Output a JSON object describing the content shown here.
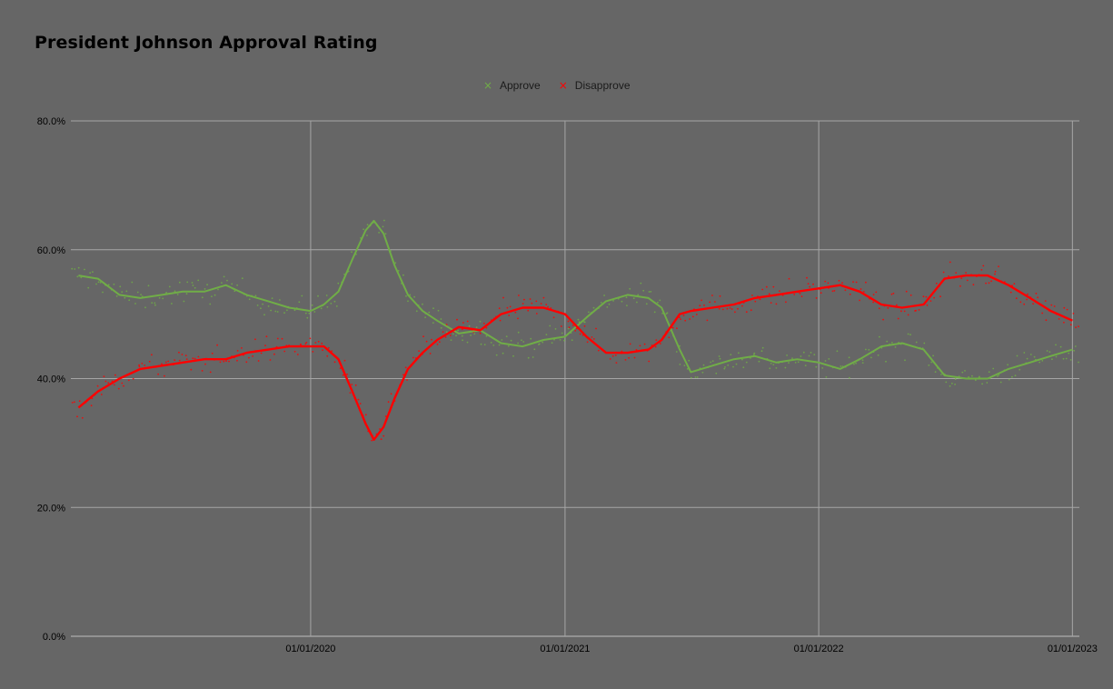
{
  "chart_data": {
    "type": "line",
    "title": "President Johnson Approval Rating",
    "xlabel": "",
    "ylabel": "",
    "x_ticks": [
      "01/01/2020",
      "01/01/2021",
      "01/01/2022",
      "01/01/2023"
    ],
    "y_ticks": [
      "0.0%",
      "20.0%",
      "40.0%",
      "60.0%",
      "80.0%"
    ],
    "ylim": [
      0,
      80
    ],
    "xlim": [
      "2019-01-21",
      "2023-01-11"
    ],
    "grid": true,
    "legend_position": "top-center",
    "markers": "scatter points of individual polls with a smoothed trend line per series",
    "series": [
      {
        "name": "Approve",
        "color": "#70ad47",
        "trend": [
          [
            "2019-02-01",
            56.0
          ],
          [
            "2019-03-01",
            55.5
          ],
          [
            "2019-04-01",
            53.0
          ],
          [
            "2019-05-01",
            52.5
          ],
          [
            "2019-06-01",
            53.0
          ],
          [
            "2019-07-01",
            53.5
          ],
          [
            "2019-08-01",
            53.5
          ],
          [
            "2019-09-01",
            54.5
          ],
          [
            "2019-10-01",
            53.0
          ],
          [
            "2019-11-01",
            52.0
          ],
          [
            "2019-12-01",
            51.0
          ],
          [
            "2020-01-01",
            50.5
          ],
          [
            "2020-01-20",
            51.5
          ],
          [
            "2020-02-10",
            53.5
          ],
          [
            "2020-03-01",
            58.5
          ],
          [
            "2020-03-20",
            63.0
          ],
          [
            "2020-04-01",
            64.5
          ],
          [
            "2020-04-15",
            62.5
          ],
          [
            "2020-05-01",
            57.5
          ],
          [
            "2020-05-20",
            53.0
          ],
          [
            "2020-06-10",
            50.5
          ],
          [
            "2020-07-01",
            49.0
          ],
          [
            "2020-08-01",
            47.0
          ],
          [
            "2020-09-01",
            47.5
          ],
          [
            "2020-10-01",
            45.5
          ],
          [
            "2020-11-01",
            45.0
          ],
          [
            "2020-12-01",
            46.0
          ],
          [
            "2021-01-01",
            46.5
          ],
          [
            "2021-02-01",
            49.5
          ],
          [
            "2021-03-01",
            52.0
          ],
          [
            "2021-04-01",
            53.0
          ],
          [
            "2021-05-01",
            52.5
          ],
          [
            "2021-05-20",
            51.0
          ],
          [
            "2021-06-15",
            44.5
          ],
          [
            "2021-07-01",
            41.0
          ],
          [
            "2021-08-01",
            42.0
          ],
          [
            "2021-09-01",
            43.0
          ],
          [
            "2021-10-01",
            43.5
          ],
          [
            "2021-11-01",
            42.5
          ],
          [
            "2021-12-01",
            43.0
          ],
          [
            "2022-01-01",
            42.5
          ],
          [
            "2022-02-01",
            41.5
          ],
          [
            "2022-03-01",
            43.0
          ],
          [
            "2022-04-01",
            45.0
          ],
          [
            "2022-05-01",
            45.5
          ],
          [
            "2022-06-01",
            44.5
          ],
          [
            "2022-07-01",
            40.5
          ],
          [
            "2022-08-01",
            40.0
          ],
          [
            "2022-09-01",
            40.0
          ],
          [
            "2022-10-01",
            41.5
          ],
          [
            "2022-11-01",
            42.5
          ],
          [
            "2022-12-01",
            43.5
          ],
          [
            "2023-01-01",
            44.5
          ]
        ]
      },
      {
        "name": "Disapprove",
        "color": "#ff0000",
        "trend": [
          [
            "2019-02-01",
            35.5
          ],
          [
            "2019-03-01",
            38.0
          ],
          [
            "2019-04-01",
            40.0
          ],
          [
            "2019-05-01",
            41.5
          ],
          [
            "2019-06-01",
            42.0
          ],
          [
            "2019-07-01",
            42.5
          ],
          [
            "2019-08-01",
            43.0
          ],
          [
            "2019-09-01",
            43.0
          ],
          [
            "2019-10-01",
            44.0
          ],
          [
            "2019-11-01",
            44.5
          ],
          [
            "2019-12-01",
            45.0
          ],
          [
            "2020-01-01",
            45.0
          ],
          [
            "2020-01-20",
            45.0
          ],
          [
            "2020-02-10",
            43.0
          ],
          [
            "2020-03-01",
            38.0
          ],
          [
            "2020-03-20",
            33.0
          ],
          [
            "2020-04-01",
            30.5
          ],
          [
            "2020-04-15",
            32.5
          ],
          [
            "2020-05-01",
            37.0
          ],
          [
            "2020-05-20",
            41.5
          ],
          [
            "2020-06-10",
            44.0
          ],
          [
            "2020-07-01",
            46.0
          ],
          [
            "2020-08-01",
            48.0
          ],
          [
            "2020-09-01",
            47.5
          ],
          [
            "2020-10-01",
            50.0
          ],
          [
            "2020-11-01",
            51.0
          ],
          [
            "2020-12-01",
            51.0
          ],
          [
            "2021-01-01",
            50.0
          ],
          [
            "2021-02-01",
            46.5
          ],
          [
            "2021-03-01",
            44.0
          ],
          [
            "2021-04-01",
            44.0
          ],
          [
            "2021-05-01",
            44.5
          ],
          [
            "2021-05-20",
            46.0
          ],
          [
            "2021-06-15",
            50.0
          ],
          [
            "2021-07-01",
            50.5
          ],
          [
            "2021-08-01",
            51.0
          ],
          [
            "2021-09-01",
            51.5
          ],
          [
            "2021-10-01",
            52.5
          ],
          [
            "2021-11-01",
            53.0
          ],
          [
            "2021-12-01",
            53.5
          ],
          [
            "2022-01-01",
            54.0
          ],
          [
            "2022-02-01",
            54.5
          ],
          [
            "2022-03-01",
            53.5
          ],
          [
            "2022-04-01",
            51.5
          ],
          [
            "2022-05-01",
            51.0
          ],
          [
            "2022-06-01",
            51.5
          ],
          [
            "2022-07-01",
            55.5
          ],
          [
            "2022-08-01",
            56.0
          ],
          [
            "2022-09-01",
            56.0
          ],
          [
            "2022-10-01",
            54.5
          ],
          [
            "2022-11-01",
            52.5
          ],
          [
            "2022-12-01",
            50.5
          ],
          [
            "2023-01-01",
            49.0
          ]
        ]
      }
    ]
  }
}
